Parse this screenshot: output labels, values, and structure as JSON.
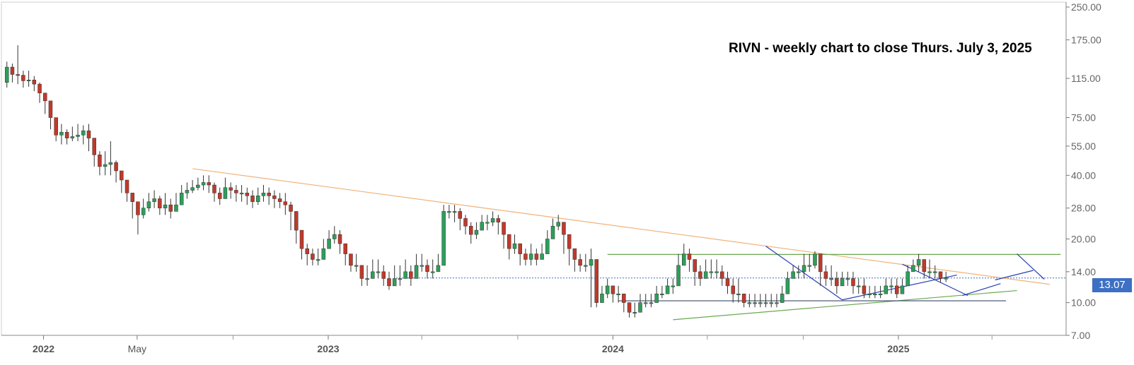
{
  "chart_data": {
    "type": "candlestick",
    "title": "RIVN - weekly chart to close Thurs. July 3, 2025",
    "y_scale": "log",
    "ylim": [
      7,
      250
    ],
    "y_ticks": [
      {
        "value": 250,
        "label": "250.00"
      },
      {
        "value": 175,
        "label": "175.00"
      },
      {
        "value": 115,
        "label": "115.00"
      },
      {
        "value": 75,
        "label": "75.00"
      },
      {
        "value": 55,
        "label": "55.00"
      },
      {
        "value": 40,
        "label": "40.00"
      },
      {
        "value": 28,
        "label": "28.00"
      },
      {
        "value": 20,
        "label": "20.00"
      },
      {
        "value": 14,
        "label": "14.00"
      },
      {
        "value": 10,
        "label": "10.00"
      },
      {
        "value": 7,
        "label": "7.00"
      }
    ],
    "x_range": [
      "2021-11-08",
      "2025-08-04"
    ],
    "x_ticks": [
      {
        "date": "2022-01-01",
        "label": "2022"
      },
      {
        "date": "2022-05-01",
        "label": "May"
      },
      {
        "date": "2023-01-01",
        "label": "2023"
      },
      {
        "date": "2024-01-01",
        "label": "2024"
      },
      {
        "date": "2025-01-01",
        "label": "2025"
      }
    ],
    "x_minor_ticks": [
      "2022-09-01",
      "2023-05-01",
      "2023-09-01",
      "2024-05-01",
      "2024-09-01",
      "2025-05-01"
    ],
    "last_price": {
      "value": 13.07,
      "label": "13.07"
    },
    "series_close": [
      130,
      120,
      119,
      112,
      113,
      108,
      98,
      90,
      75,
      62,
      64,
      60,
      61,
      62,
      65,
      60,
      50,
      44,
      45,
      46,
      42,
      38,
      33,
      30,
      26,
      28,
      30,
      31,
      28,
      29,
      27,
      29,
      33,
      34,
      35,
      36,
      37,
      36,
      33,
      31,
      35,
      34,
      33,
      33,
      32,
      30,
      32,
      33,
      32,
      31,
      30,
      29,
      27,
      22,
      18,
      17,
      16,
      16,
      18,
      20,
      21,
      19,
      17,
      15,
      15,
      13,
      13,
      14,
      14,
      13,
      12,
      13,
      13,
      14,
      13,
      15,
      15,
      14,
      14,
      15,
      27,
      27,
      27,
      25,
      23,
      21,
      22,
      24,
      24,
      25,
      24,
      21,
      18,
      19,
      17,
      16,
      17,
      16,
      17,
      20,
      23,
      24,
      21,
      18,
      16,
      15,
      15,
      16,
      10,
      11,
      12,
      11,
      11,
      10,
      9,
      9,
      10,
      10,
      10,
      11,
      11,
      12,
      12,
      15,
      17,
      16,
      14,
      13,
      14,
      14,
      14,
      13,
      12,
      11,
      11,
      10,
      10,
      10,
      10,
      10,
      10,
      10,
      11,
      13,
      14,
      14,
      15,
      15,
      17,
      14,
      13,
      13,
      12,
      13,
      13,
      12,
      12,
      11,
      11,
      11,
      11,
      12,
      12,
      11,
      12,
      14,
      15,
      16,
      14,
      14,
      14,
      13,
      13.07
    ],
    "series_high": [
      138,
      135,
      165,
      125,
      125,
      118,
      110,
      96,
      82,
      70,
      70,
      66,
      68,
      70,
      69,
      70,
      56,
      52,
      52,
      58,
      47,
      42,
      36,
      32,
      29,
      31,
      33,
      34,
      32,
      33,
      31,
      33,
      36,
      37,
      38,
      39,
      40,
      40,
      37,
      35,
      39,
      37,
      36,
      36,
      35,
      34,
      35,
      36,
      35,
      34,
      33,
      33,
      30,
      25,
      20,
      19,
      18,
      18,
      20,
      22,
      23,
      22,
      19,
      17,
      17,
      15,
      15,
      16,
      16,
      15,
      14,
      15,
      15,
      16,
      15,
      17,
      17,
      16,
      16,
      17,
      29,
      29,
      29,
      28,
      26,
      24,
      24,
      26,
      26,
      27,
      26,
      24,
      20,
      21,
      19,
      18,
      19,
      18,
      19,
      22,
      25,
      26,
      24,
      20,
      18,
      17,
      17,
      18,
      14,
      12,
      13,
      12,
      12,
      11,
      10,
      10,
      11,
      11,
      11,
      12,
      12,
      13,
      13,
      17,
      19,
      18,
      16,
      15,
      16,
      16,
      16,
      15,
      14,
      13,
      13,
      11,
      11,
      11,
      11,
      11,
      11,
      11,
      12,
      14,
      15,
      15,
      17,
      17,
      17.5,
      17,
      15,
      15,
      14,
      14,
      14,
      14,
      13,
      13,
      12,
      12,
      12,
      13,
      13,
      13,
      13,
      15,
      16,
      17,
      16,
      16,
      15,
      14,
      14
    ],
    "series_low": [
      104,
      110,
      108,
      104,
      105,
      100,
      88,
      78,
      66,
      58,
      56,
      56,
      58,
      58,
      56,
      52,
      44,
      40,
      40,
      40,
      37,
      33,
      30,
      25,
      21,
      25,
      27,
      28,
      26,
      26,
      25,
      27,
      30,
      31,
      33,
      34,
      34,
      33,
      30,
      29,
      32,
      31,
      30,
      30,
      29,
      28,
      29,
      30,
      29,
      28,
      28,
      26,
      22,
      19,
      16,
      15,
      15,
      15,
      16,
      18,
      19,
      17,
      15,
      14,
      14,
      12,
      12,
      13,
      13,
      12,
      11.5,
      12,
      12,
      13,
      12,
      13.5,
      14,
      13,
      13,
      14,
      20,
      25,
      24,
      22,
      21,
      19,
      20,
      22,
      22,
      23,
      21,
      18,
      16,
      17,
      15,
      15,
      15,
      15,
      16,
      18,
      21,
      22,
      17,
      15,
      14,
      14,
      14,
      9.5,
      9.5,
      10,
      10.5,
      10,
      10,
      9,
      8.5,
      8.5,
      9,
      9.5,
      9.5,
      10,
      10.5,
      11,
      11,
      13,
      15,
      14,
      12,
      12,
      13,
      13,
      13,
      12,
      11,
      10,
      10,
      9.5,
      9.5,
      9.5,
      9.5,
      9.5,
      9.5,
      9.5,
      10,
      11.5,
      13,
      13,
      13,
      14,
      14.5,
      12,
      12,
      12,
      11,
      12,
      12,
      11,
      11,
      10.5,
      10.5,
      10.5,
      10.5,
      11,
      11,
      10.5,
      11,
      12,
      14,
      14,
      13,
      13,
      13,
      12.5,
      12.5
    ],
    "series_open": [
      110,
      130,
      120,
      119,
      112,
      113,
      108,
      98,
      90,
      75,
      62,
      64,
      60,
      61,
      62,
      65,
      60,
      50,
      44,
      45,
      46,
      42,
      38,
      33,
      30,
      26,
      28,
      30,
      31,
      28,
      29,
      27,
      29,
      33,
      34,
      35,
      36,
      37,
      36,
      33,
      31,
      35,
      34,
      33,
      33,
      32,
      30,
      32,
      33,
      32,
      31,
      30,
      29,
      27,
      22,
      18,
      17,
      16,
      16,
      18,
      20,
      21,
      19,
      17,
      15,
      15,
      13,
      13,
      14,
      14,
      13,
      12,
      13,
      13,
      14,
      13,
      15,
      15,
      14,
      14,
      15,
      27,
      27,
      27,
      25,
      23,
      21,
      22,
      24,
      24,
      25,
      24,
      21,
      18,
      19,
      17,
      16,
      17,
      16,
      17,
      20,
      23,
      24,
      21,
      18,
      16,
      15,
      15,
      16,
      10,
      11,
      12,
      11,
      11,
      10,
      9,
      9,
      10,
      10,
      10,
      11,
      11,
      12,
      12,
      15,
      17,
      16,
      14,
      13,
      14,
      14,
      14,
      13,
      12,
      11,
      11,
      10,
      10,
      10,
      10,
      10,
      10,
      10,
      11,
      13,
      14,
      14,
      15,
      15,
      17,
      14,
      13,
      13,
      12,
      13,
      13,
      12,
      12,
      11,
      11,
      11,
      11,
      12,
      12,
      11,
      12,
      14,
      15,
      16,
      14,
      14,
      14,
      13
    ],
    "series_start": "2021-11-15",
    "trendlines": [
      {
        "from": [
          "2022-07-11",
          43
        ],
        "to": [
          "2025-07-14",
          12.2
        ],
        "color": "#f0b27a"
      },
      {
        "from": [
          "2023-12-25",
          16.9
        ],
        "to": [
          "2025-07-28",
          16.9
        ],
        "color": "#6aa84f"
      },
      {
        "from": [
          "2024-03-18",
          8.3
        ],
        "to": [
          "2025-06-02",
          11.4
        ],
        "color": "#6aa84f"
      },
      {
        "from": [
          "2024-01-08",
          10.2
        ],
        "to": [
          "2025-05-19",
          10.2
        ],
        "color": "#3b4a6b"
      },
      {
        "from": [
          "2024-07-15",
          18.5
        ],
        "to": [
          "2024-10-21",
          10.3
        ],
        "color": "#2a3fb5"
      },
      {
        "from": [
          "2024-10-21",
          10.3
        ],
        "to": [
          "2025-03-17",
          13.5
        ],
        "color": "#2a3fb5"
      },
      {
        "from": [
          "2025-01-06",
          15.2
        ],
        "to": [
          "2025-03-31",
          10.8
        ],
        "color": "#2a3fb5"
      },
      {
        "from": [
          "2025-03-24",
          10.8
        ],
        "to": [
          "2025-05-12",
          12.3
        ],
        "color": "#2a3fb5"
      },
      {
        "from": [
          "2025-05-05",
          12.8
        ],
        "to": [
          "2025-06-23",
          14.2
        ],
        "color": "#2a3fb5"
      },
      {
        "from": [
          "2025-06-02",
          17
        ],
        "to": [
          "2025-07-07",
          12.9
        ],
        "color": "#2a3fb5"
      }
    ],
    "horizontal_ref": {
      "value": 13.07,
      "color": "#3d6fc4",
      "style": "dotted"
    },
    "colors": {
      "up": "#2e9e5b",
      "down": "#c0392b",
      "grid": "#e0e0e0",
      "axis": "#555555"
    }
  }
}
